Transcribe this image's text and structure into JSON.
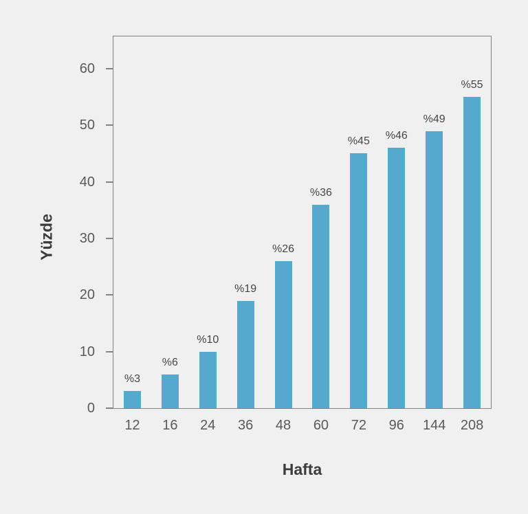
{
  "chart_data": {
    "type": "bar",
    "title": "",
    "categories": [
      "12",
      "16",
      "24",
      "36",
      "48",
      "60",
      "72",
      "96",
      "144",
      "208"
    ],
    "values": [
      3,
      6,
      10,
      19,
      26,
      36,
      45,
      46,
      49,
      55
    ],
    "bar_labels": [
      "%3",
      "%6",
      "%10",
      "%19",
      "%26",
      "%36",
      "%45",
      "%46",
      "%49",
      "%55"
    ],
    "xlabel": "Hafta",
    "ylabel": "Yüzde",
    "yticks": [
      0,
      10,
      20,
      30,
      40,
      50,
      60
    ],
    "ylim": [
      0,
      65.7
    ],
    "grid": false,
    "legend": null,
    "colors": {
      "bar": "#55a9cd",
      "axis": "#828282",
      "tick_label": "#595959",
      "bar_label": "#454545",
      "axis_title": "#3c3c3c",
      "background": "#f0f0f1"
    }
  }
}
